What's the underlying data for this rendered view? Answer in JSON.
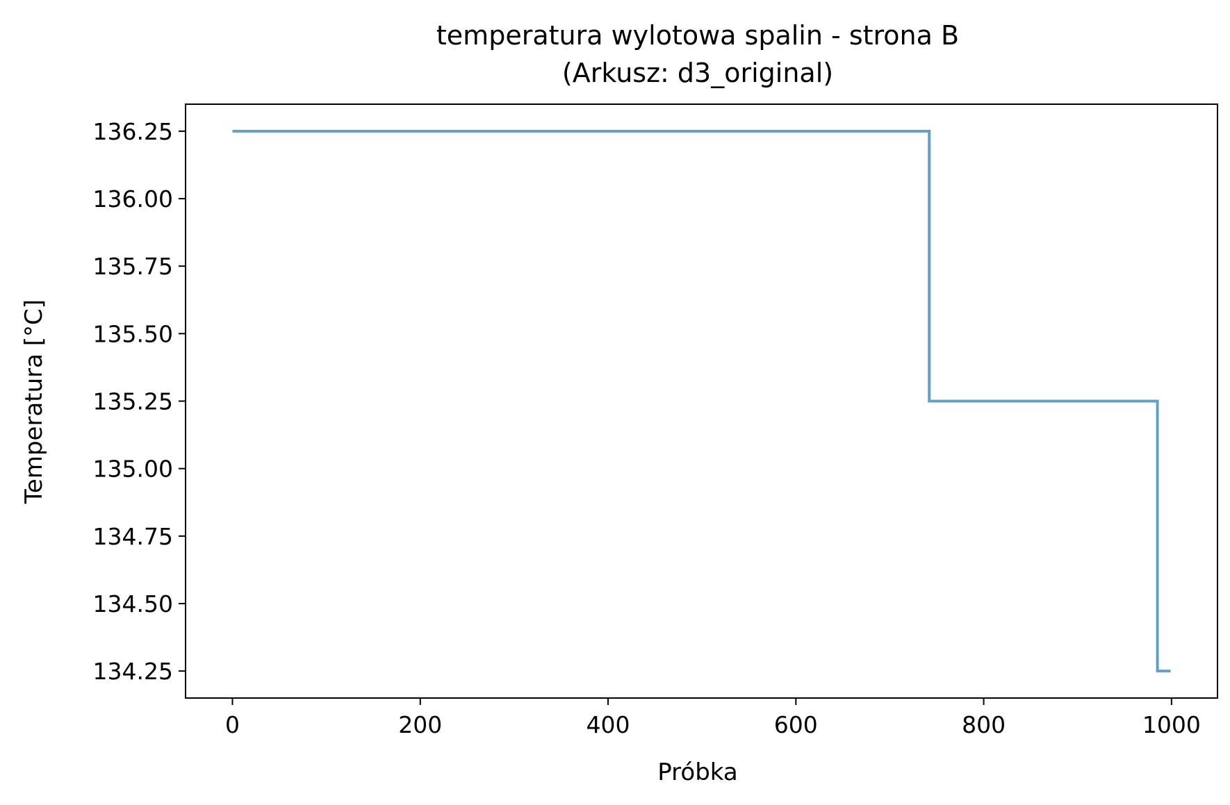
{
  "chart_data": {
    "type": "line",
    "title": "temperatura wylotowa spalin - strona B",
    "subtitle": "(Arkusz: d3_original)",
    "xlabel": "Próbka",
    "ylabel": "Temperatura [°C]",
    "xlim": [
      -49.95,
      1048.95
    ],
    "ylim": [
      134.15,
      136.35
    ],
    "x_ticks": [
      0,
      200,
      400,
      600,
      800,
      1000
    ],
    "x_tick_labels": [
      "0",
      "200",
      "400",
      "600",
      "800",
      "1000"
    ],
    "y_ticks": [
      134.25,
      134.5,
      134.75,
      135.0,
      135.25,
      135.5,
      135.75,
      136.0,
      136.25
    ],
    "y_tick_labels": [
      "134.25",
      "134.50",
      "134.75",
      "135.00",
      "135.25",
      "135.50",
      "135.75",
      "136.00",
      "136.25"
    ],
    "grid": false,
    "legend": "none",
    "series": [
      {
        "color": "#62a0c9",
        "x": [
          0,
          742,
          742,
          985,
          985,
          999
        ],
        "y": [
          136.25,
          136.25,
          135.25,
          135.25,
          134.25,
          134.25
        ]
      }
    ]
  }
}
